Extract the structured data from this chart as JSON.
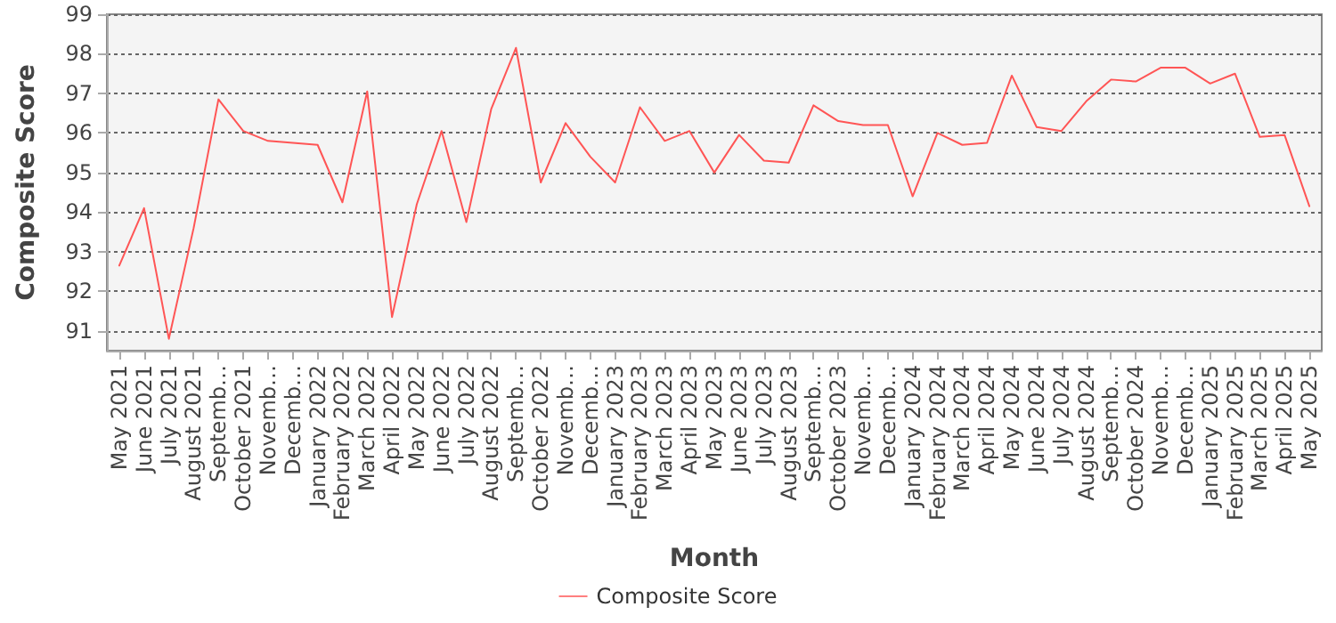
{
  "chart_data": {
    "type": "line",
    "xlabel": "Month",
    "ylabel": "Composite Score",
    "categories": [
      "May 2021",
      "June 2021",
      "July 2021",
      "August 2021",
      "Septemb…",
      "October 2021",
      "Novemb…",
      "Decemb…",
      "January 2022",
      "February 2022",
      "March 2022",
      "April 2022",
      "May 2022",
      "June 2022",
      "July 2022",
      "August 2022",
      "Septemb…",
      "October 2022",
      "Novemb…",
      "Decemb…",
      "January 2023",
      "February 2023",
      "March 2023",
      "April 2023",
      "May 2023",
      "June 2023",
      "July 2023",
      "August 2023",
      "Septemb…",
      "October 2023",
      "Novemb…",
      "Decemb…",
      "January 2024",
      "February 2024",
      "March 2024",
      "April 2024",
      "May 2024",
      "June 2024",
      "July 2024",
      "August 2024",
      "Septemb…",
      "October 2024",
      "Novemb…",
      "Decemb…",
      "January 2025",
      "February 2025",
      "March 2025",
      "April 2025",
      "May 2025"
    ],
    "series": [
      {
        "name": "Composite Score",
        "color": "#ff5555",
        "values": [
          92.65,
          94.1,
          90.8,
          93.6,
          96.85,
          96.05,
          95.8,
          95.75,
          95.7,
          94.25,
          97.05,
          91.35,
          94.2,
          96.05,
          93.75,
          96.6,
          98.15,
          94.75,
          96.25,
          95.4,
          94.75,
          96.65,
          95.8,
          96.05,
          95.0,
          95.95,
          95.3,
          95.25,
          96.7,
          96.3,
          96.2,
          96.2,
          94.4,
          96.0,
          95.7,
          95.75,
          97.45,
          96.15,
          96.05,
          96.8,
          97.35,
          97.3,
          97.65,
          97.65,
          97.25,
          97.5,
          95.9,
          95.95,
          94.15
        ]
      }
    ],
    "ylim": [
      90.5,
      99
    ],
    "yticks": [
      91,
      92,
      93,
      94,
      95,
      96,
      97,
      98,
      99
    ],
    "grid": "y",
    "legend": "bottom",
    "marker": "none",
    "line_style": "solid"
  }
}
